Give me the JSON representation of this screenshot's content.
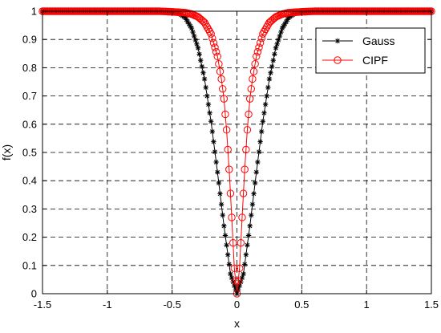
{
  "chart_data": {
    "type": "line",
    "title": "",
    "xlabel": "x",
    "ylabel": "f(x)",
    "xlim": [
      -1.5,
      1.5
    ],
    "ylim": [
      0,
      1
    ],
    "xticks": [
      -1.5,
      -1,
      -0.5,
      0,
      0.5,
      1,
      1.5
    ],
    "xtick_labels": [
      "-1.5",
      "-1",
      "-0.5",
      "0",
      "0.5",
      "1",
      "1.5"
    ],
    "yticks": [
      0,
      0.1,
      0.2,
      0.3,
      0.4,
      0.5,
      0.6,
      0.7,
      0.8,
      0.9,
      1
    ],
    "ytick_labels": [
      "0",
      "0.1",
      "0.2",
      "0.3",
      "0.4",
      "0.5",
      "0.6",
      "0.7",
      "0.8",
      "0.9",
      "1"
    ],
    "grid": true,
    "grid_style": "dashed",
    "legend_position": "top-right",
    "series": [
      {
        "name": "Gauss",
        "color": "#000000",
        "marker": "asterisk",
        "x": [
          -1.5,
          -1.2,
          -1.0,
          -0.8,
          -0.6,
          -0.5,
          -0.45,
          -0.4,
          -0.35,
          -0.3,
          -0.25,
          -0.2,
          -0.15,
          -0.1,
          -0.05,
          0,
          0.05,
          0.1,
          0.15,
          0.2,
          0.25,
          0.3,
          0.35,
          0.4,
          0.45,
          0.5,
          0.6,
          0.8,
          1.0,
          1.2,
          1.5
        ],
        "y": [
          1,
          1,
          1,
          1,
          0.999,
          0.997,
          0.993,
          0.978,
          0.94,
          0.87,
          0.76,
          0.61,
          0.43,
          0.24,
          0.07,
          0,
          0.07,
          0.24,
          0.43,
          0.61,
          0.76,
          0.87,
          0.94,
          0.978,
          0.993,
          0.997,
          0.999,
          1,
          1,
          1,
          1
        ]
      },
      {
        "name": "CIPF",
        "color": "#ff0000",
        "marker": "circle",
        "x": [
          -1.5,
          -1.2,
          -1.0,
          -0.8,
          -0.6,
          -0.5,
          -0.4,
          -0.35,
          -0.3,
          -0.25,
          -0.2,
          -0.15,
          -0.12,
          -0.1,
          -0.08,
          -0.06,
          -0.04,
          -0.02,
          0,
          0.02,
          0.04,
          0.06,
          0.08,
          0.1,
          0.12,
          0.15,
          0.2,
          0.25,
          0.3,
          0.35,
          0.4,
          0.5,
          0.6,
          0.8,
          1.0,
          1.2,
          1.5
        ],
        "y": [
          1,
          1,
          1,
          1,
          1,
          0.998,
          0.995,
          0.99,
          0.98,
          0.96,
          0.92,
          0.84,
          0.76,
          0.69,
          0.58,
          0.44,
          0.27,
          0.09,
          0,
          0.09,
          0.27,
          0.44,
          0.58,
          0.69,
          0.76,
          0.84,
          0.92,
          0.96,
          0.98,
          0.99,
          0.995,
          0.998,
          1,
          1,
          1,
          1,
          1
        ]
      }
    ]
  }
}
